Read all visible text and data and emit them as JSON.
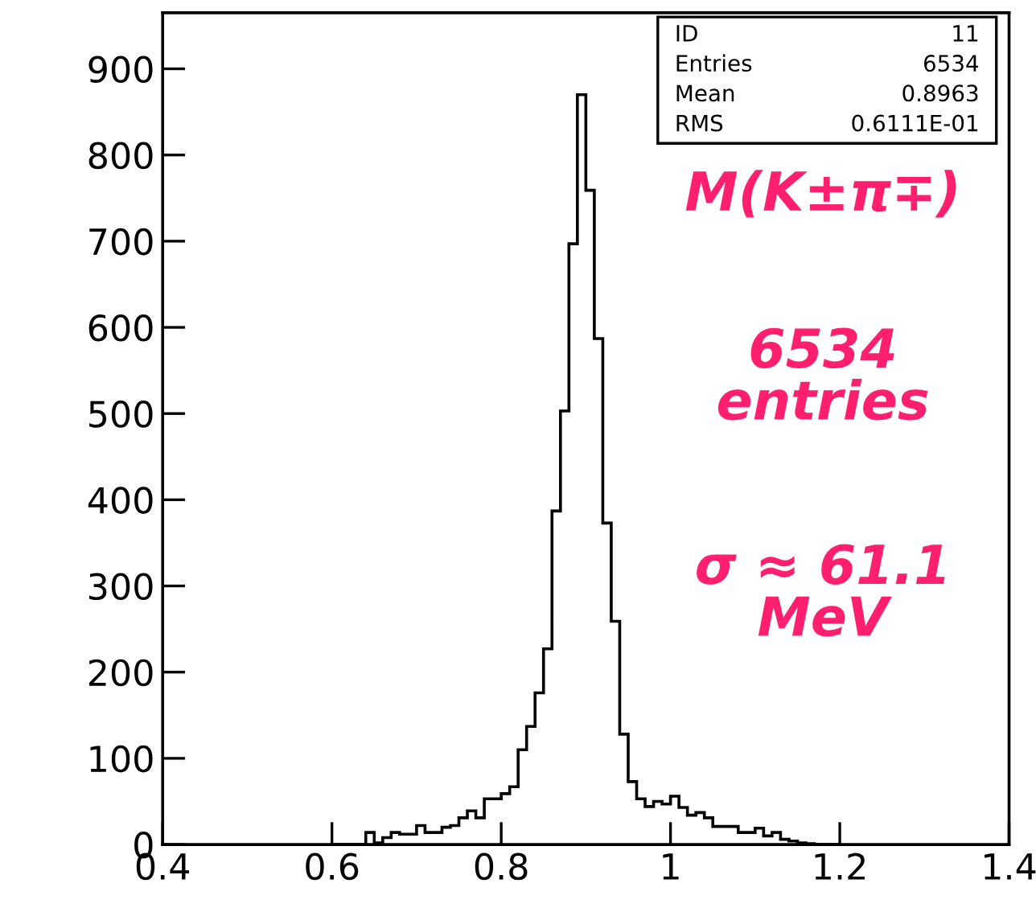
{
  "chart_data": {
    "type": "histogram",
    "color": "#000000",
    "bins": [
      0.6,
      0.61,
      0.62,
      0.63,
      0.64,
      0.65,
      0.66,
      0.67,
      0.68,
      0.69,
      0.7,
      0.71,
      0.72,
      0.73,
      0.74,
      0.75,
      0.76,
      0.77,
      0.78,
      0.79,
      0.8,
      0.81,
      0.82,
      0.83,
      0.84,
      0.85,
      0.86,
      0.87,
      0.88,
      0.89,
      0.9,
      0.91,
      0.92,
      0.93,
      0.94,
      0.95,
      0.96,
      0.97,
      0.98,
      0.99,
      1.0,
      1.01,
      1.02,
      1.03,
      1.04,
      1.05,
      1.06,
      1.07,
      1.08,
      1.09,
      1.1,
      1.11,
      1.12,
      1.13,
      1.14,
      1.15,
      1.16,
      1.17,
      1.18,
      1.19,
      1.2
    ],
    "values": [
      0,
      0,
      0,
      0,
      14,
      2,
      8,
      14,
      12,
      12,
      22,
      14,
      14,
      20,
      22,
      31,
      39,
      31,
      53,
      53,
      59,
      67,
      110,
      137,
      176,
      227,
      387,
      503,
      697,
      870,
      759,
      587,
      373,
      259,
      128,
      73,
      53,
      44,
      50,
      47,
      56,
      43,
      34,
      37,
      31,
      21,
      21,
      21,
      14,
      14,
      19,
      10,
      14,
      6,
      4,
      2,
      1,
      0,
      0,
      0
    ],
    "xlim": [
      0.4,
      1.4
    ],
    "xticks": [
      0.4,
      0.6,
      0.8,
      {
        "value": 1.0,
        "label": "1"
      },
      1.2,
      1.4
    ],
    "ylim": [
      0,
      965
    ],
    "yticks": [
      0,
      100,
      200,
      300,
      400,
      500,
      600,
      700,
      800,
      900
    ],
    "grid": false,
    "legend": false,
    "annotations": [
      "ID 11",
      "Entries 6534",
      "Mean 0.8963",
      "RMS 0.6111E-01",
      "M(K±π∓)",
      "6534\nentries",
      "σ ≈ 61.1\nMeV"
    ]
  }
}
